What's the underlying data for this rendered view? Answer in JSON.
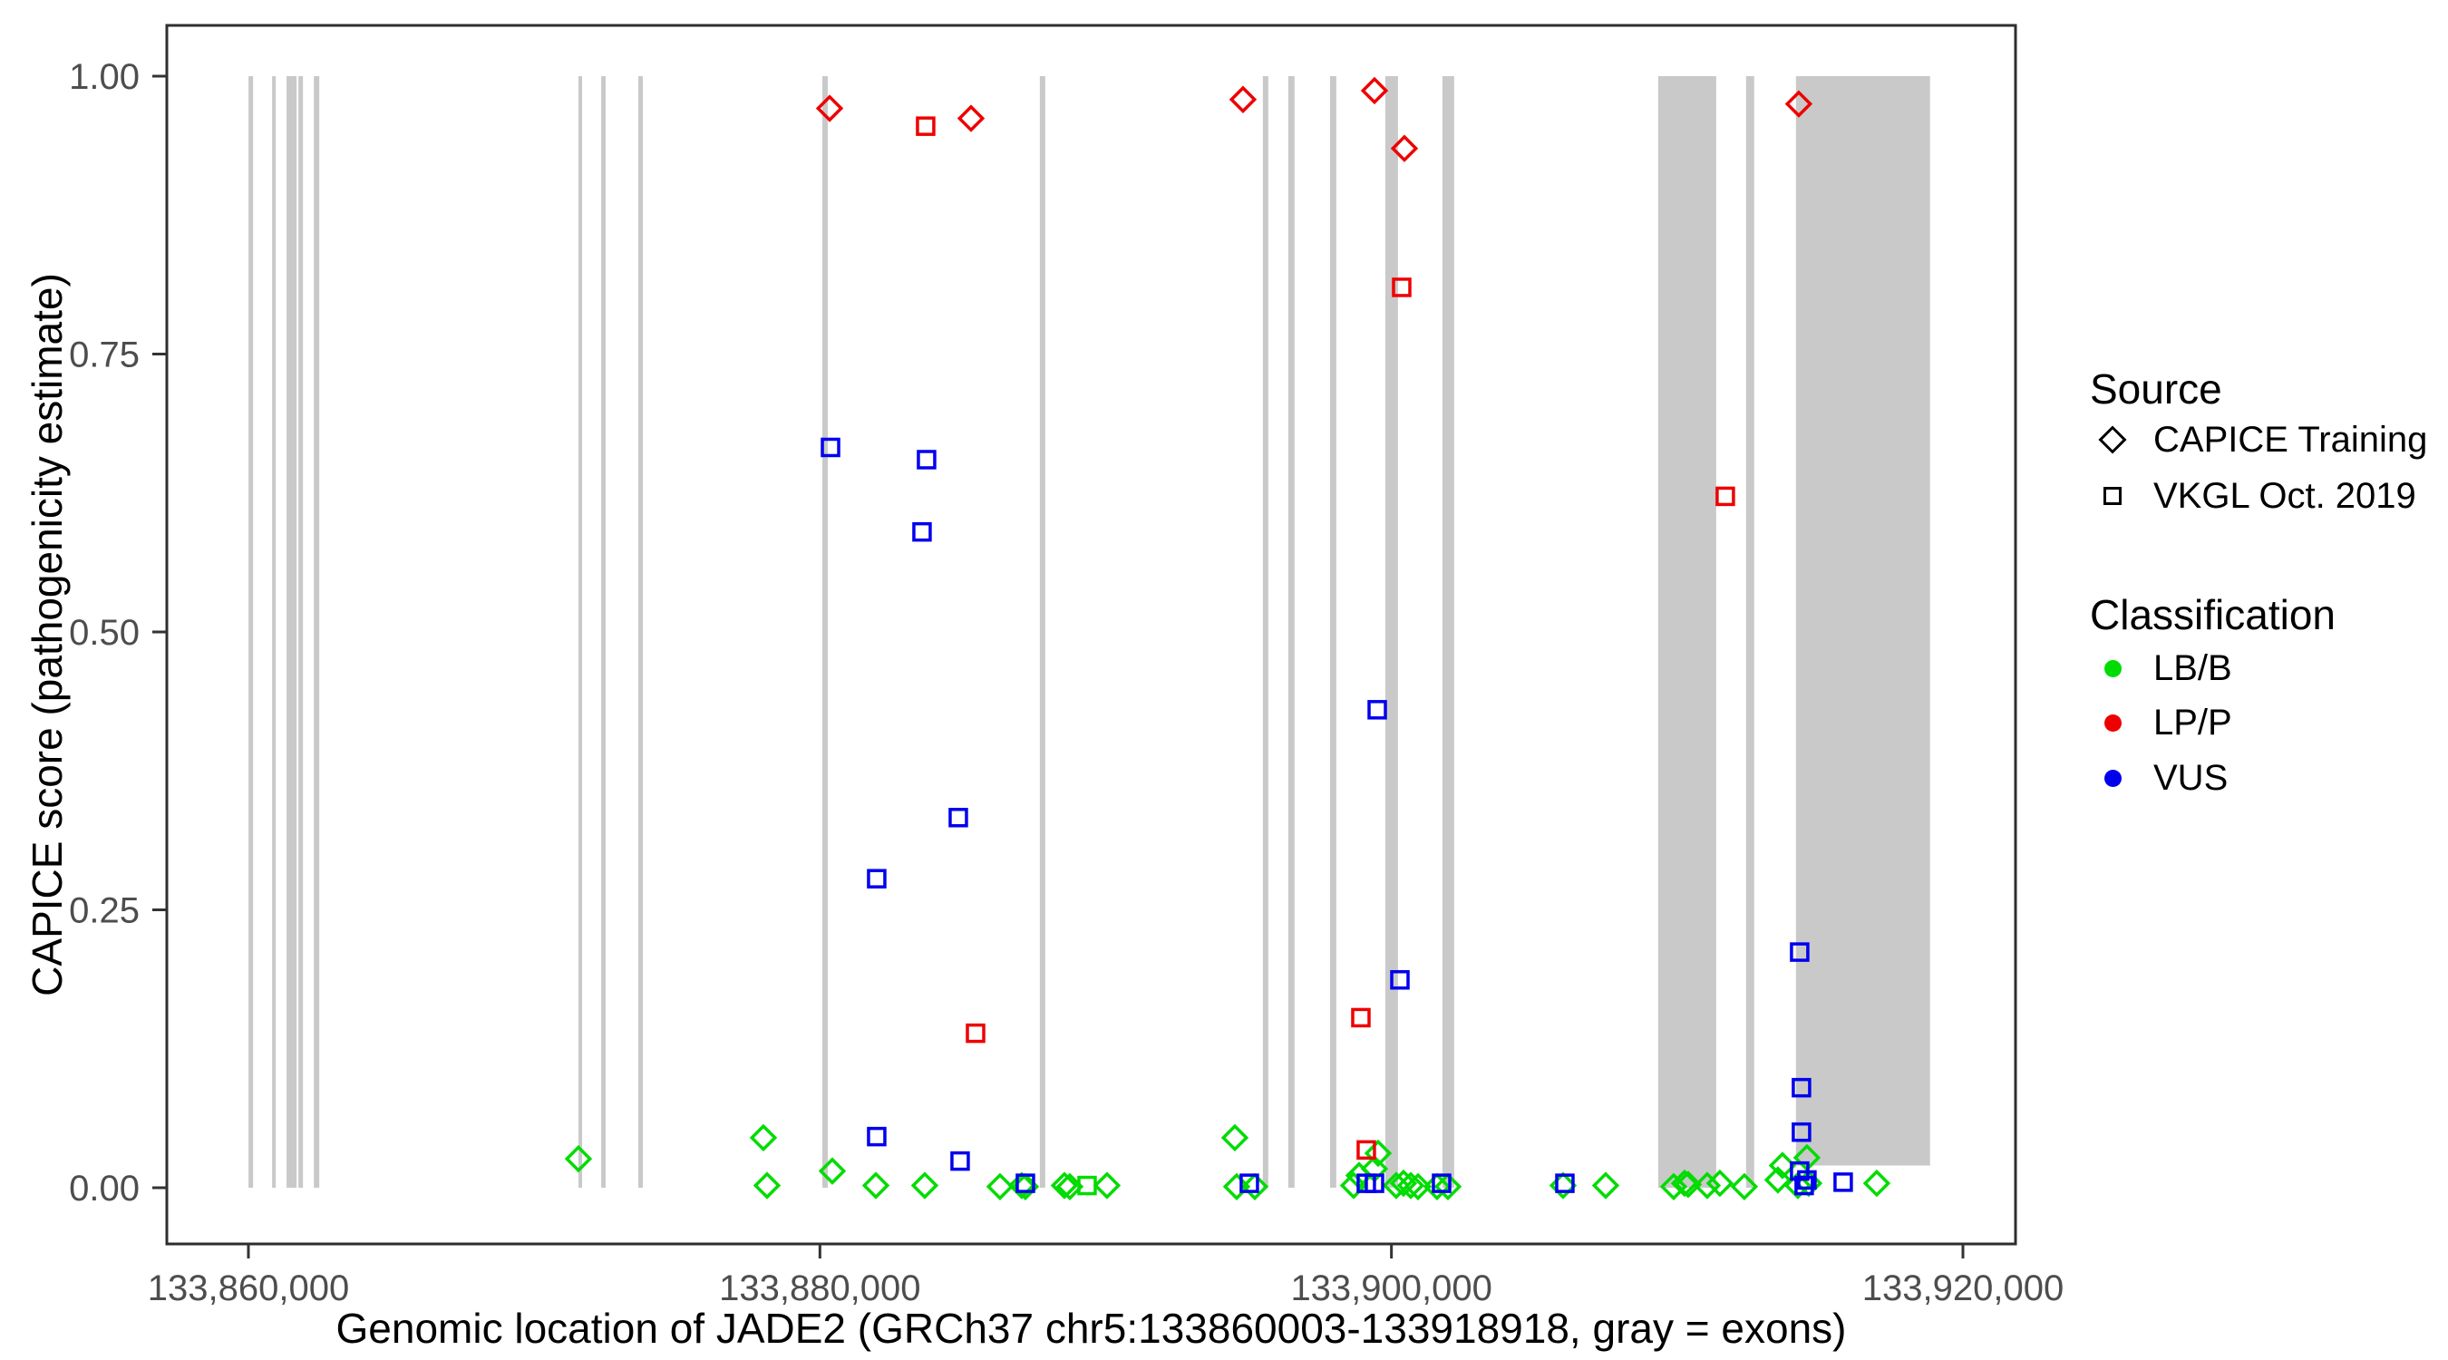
{
  "figure": {
    "y_axis_title": "CAPICE score (pathogenicity estimate)",
    "x_axis_title": "Genomic location of JADE2 (GRCh37 chr5:133860003-133918918, gray = exons)"
  },
  "legend": {
    "source": {
      "title": "Source",
      "items": [
        {
          "label": "CAPICE Training",
          "marker": "diamond"
        },
        {
          "label": "VKGL Oct. 2019",
          "marker": "square"
        }
      ]
    },
    "classification": {
      "title": "Classification",
      "items": [
        {
          "label": "LB/B",
          "color": "#00DC00"
        },
        {
          "label": "LP/P",
          "color": "#EE0000"
        },
        {
          "label": "VUS",
          "color": "#0000EE"
        }
      ]
    }
  },
  "chart_data": {
    "type": "scatter",
    "title": "",
    "xlabel": "Genomic location of JADE2 (GRCh37 chr5:133860003-133918918, gray = exons)",
    "ylabel": "CAPICE score (pathogenicity estimate)",
    "xlim": [
      133857145,
      133921840
    ],
    "ylim": [
      -0.056,
      1.046
    ],
    "grid": false,
    "legend_position": "right",
    "x_ticks": [
      {
        "value": 133860000,
        "label": "133,860,000"
      },
      {
        "value": 133880000,
        "label": "133,880,000"
      },
      {
        "value": 133900000,
        "label": "133,900,000"
      },
      {
        "value": 133920000,
        "label": "133,920,000"
      }
    ],
    "y_ticks": [
      {
        "value": 0.0,
        "label": "0.00"
      },
      {
        "value": 0.25,
        "label": "0.25"
      },
      {
        "value": 0.5,
        "label": "0.50"
      },
      {
        "value": 0.75,
        "label": "0.75"
      },
      {
        "value": 1.0,
        "label": "1.00"
      }
    ],
    "colors": {
      "LB/B": "#00DC00",
      "LP/P": "#EE0000",
      "VUS": "#0000EE"
    },
    "exon_color": "#C9C9C9",
    "exons": [
      [
        133860003,
        133860165
      ],
      [
        133860830,
        133860955
      ],
      [
        133861335,
        133861685
      ],
      [
        133861750,
        133861910
      ],
      [
        133862290,
        133862480
      ],
      [
        133871550,
        133871645
      ],
      [
        133872345,
        133872500
      ],
      [
        133873645,
        133873805
      ],
      [
        133880085,
        133880275
      ],
      [
        133887695,
        133887885
      ],
      [
        133895500,
        133895690
      ],
      [
        133896390,
        133896610
      ],
      [
        133897850,
        133898070
      ],
      [
        133899785,
        133900230
      ],
      [
        133901785,
        133902195
      ],
      [
        133909335,
        133911365
      ],
      [
        133912410,
        133912695
      ],
      [
        133914155,
        133918850,
        0.02
      ]
    ],
    "series": [
      {
        "source": "CAPICE Training",
        "classification": "LB/B",
        "marker": "diamond",
        "points": [
          [
            133871549,
            0.026
          ],
          [
            133878022,
            0.045
          ],
          [
            133878149,
            0.002
          ],
          [
            133880434,
            0.015
          ],
          [
            133881957,
            0.002
          ],
          [
            133883668,
            0.002
          ],
          [
            133886302,
            0.001
          ],
          [
            133887064,
            0.002
          ],
          [
            133887191,
            0.001
          ],
          [
            133888555,
            0.002
          ],
          [
            133888745,
            0.001
          ],
          [
            133890046,
            0.002
          ],
          [
            133894521,
            0.045
          ],
          [
            133894584,
            0.001
          ],
          [
            133895219,
            0.001
          ],
          [
            133898677,
            0.002
          ],
          [
            133898868,
            0.011
          ],
          [
            133899407,
            0.017
          ],
          [
            133899534,
            0.031
          ],
          [
            133900168,
            0.002
          ],
          [
            133900422,
            0.004
          ],
          [
            133900676,
            0.002
          ],
          [
            133900930,
            0.001
          ],
          [
            133901596,
            0.001
          ],
          [
            133901977,
            0.001
          ],
          [
            133906007,
            0.002
          ],
          [
            133907498,
            0.002
          ],
          [
            133909877,
            0.001
          ],
          [
            133910257,
            0.004
          ],
          [
            133910384,
            0.003
          ],
          [
            133911050,
            0.002
          ],
          [
            133911494,
            0.004
          ],
          [
            133912351,
            0.001
          ],
          [
            133913525,
            0.007
          ],
          [
            133913684,
            0.02
          ],
          [
            133914223,
            0.002
          ],
          [
            133914540,
            0.027
          ],
          [
            133914603,
            0.004
          ],
          [
            133916983,
            0.004
          ]
        ]
      },
      {
        "source": "CAPICE Training",
        "classification": "LP/P",
        "marker": "diamond",
        "points": [
          [
            133880340,
            0.971
          ],
          [
            133885288,
            0.962
          ],
          [
            133894806,
            0.979
          ],
          [
            133899407,
            0.987
          ],
          [
            133900454,
            0.935
          ],
          [
            133914254,
            0.975
          ]
        ]
      },
      {
        "source": "VKGL Oct. 2019",
        "classification": "LB/B",
        "marker": "square",
        "points": [
          [
            133889349,
            0.002
          ]
        ]
      },
      {
        "source": "VKGL Oct. 2019",
        "classification": "LP/P",
        "marker": "square",
        "points": [
          [
            133883700,
            0.955
          ],
          [
            133900359,
            0.81
          ],
          [
            133911684,
            0.622
          ],
          [
            133898931,
            0.153
          ],
          [
            133885447,
            0.139
          ],
          [
            133899121,
            0.034
          ]
        ]
      },
      {
        "source": "VKGL Oct. 2019",
        "classification": "VUS",
        "marker": "square",
        "points": [
          [
            133880371,
            0.666
          ],
          [
            133883732,
            0.655
          ],
          [
            133883573,
            0.59
          ],
          [
            133884843,
            0.333
          ],
          [
            133881987,
            0.278
          ],
          [
            133899503,
            0.43
          ],
          [
            133900296,
            0.187
          ],
          [
            133914286,
            0.212
          ],
          [
            133914349,
            0.09
          ],
          [
            133914349,
            0.05
          ],
          [
            133881987,
            0.046
          ],
          [
            133884906,
            0.024
          ],
          [
            133887191,
            0.004
          ],
          [
            133895027,
            0.004
          ],
          [
            133899121,
            0.004
          ],
          [
            133899407,
            0.004
          ],
          [
            133901755,
            0.004
          ],
          [
            133906070,
            0.004
          ],
          [
            133914286,
            0.015
          ],
          [
            133914540,
            0.007
          ],
          [
            133915809,
            0.005
          ],
          [
            133914444,
            0.002
          ]
        ]
      }
    ]
  }
}
